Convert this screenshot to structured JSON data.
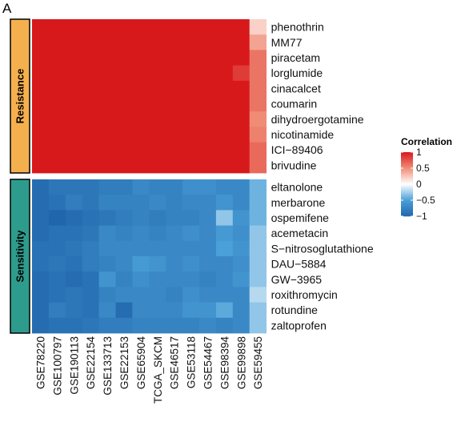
{
  "panel_label": "A",
  "chart_data": {
    "type": "heatmap",
    "title": "",
    "xlabel": "",
    "ylabel": "",
    "columns": [
      "GSE78220",
      "GSE100797",
      "GSE190113",
      "GSE22154",
      "GSE133713",
      "GSE22153",
      "GSE65904",
      "TCGA_SKCM",
      "GSE46517",
      "GSE53118",
      "GSE54467",
      "GSE98394",
      "GSE99898",
      "GSE59455"
    ],
    "groups": [
      {
        "name": "Resistance",
        "color": "#F5B04E",
        "start": 0,
        "end": 9
      },
      {
        "name": "Sensitivity",
        "color": "#2E9C8C",
        "start": 10,
        "end": 19
      }
    ],
    "rows": [
      "phenothrin",
      "MM77",
      "piracetam",
      "lorglumide",
      "cinacalcet",
      "coumarin",
      "dihydroergotamine",
      "nicotinamide",
      "ICI−89406",
      "brivudine",
      "eltanolone",
      "merbarone",
      "ospemifene",
      "acemetacin",
      "S−nitrosoglutathione",
      "DAU−5884",
      "GW−3965",
      "roxithromycin",
      "rotundine",
      "zaltoprofen"
    ],
    "values": [
      [
        1,
        1,
        1,
        1,
        1,
        1,
        1,
        1,
        1,
        1,
        1,
        1,
        1,
        0.2
      ],
      [
        1,
        1,
        1,
        1,
        1,
        1,
        1,
        1,
        1,
        1,
        1,
        1,
        1,
        0.4
      ],
      [
        1,
        1,
        1,
        1,
        1,
        1,
        1,
        1,
        1,
        1,
        1,
        1,
        1,
        0.6
      ],
      [
        1,
        1,
        1,
        1,
        1,
        1,
        1,
        1,
        1,
        1,
        1,
        1,
        0.85,
        0.6
      ],
      [
        1,
        1,
        1,
        1,
        1,
        1,
        1,
        1,
        1,
        1,
        1,
        1,
        1,
        0.6
      ],
      [
        1,
        1,
        1,
        1,
        1,
        1,
        1,
        1,
        1,
        1,
        1,
        1,
        1,
        0.6
      ],
      [
        1,
        1,
        1,
        1,
        1,
        1,
        1,
        1,
        1,
        1,
        1,
        1,
        1,
        0.5
      ],
      [
        1,
        1,
        1,
        1,
        1,
        1,
        1,
        1,
        1,
        1,
        1,
        1,
        1,
        0.55
      ],
      [
        1,
        1,
        1,
        1,
        1,
        1,
        1,
        1,
        1,
        1,
        1,
        1,
        1,
        0.65
      ],
      [
        1,
        1,
        1,
        1,
        1,
        1,
        1,
        1,
        1,
        1,
        1,
        1,
        1,
        0.65
      ],
      [
        -0.95,
        -0.85,
        -0.85,
        -0.85,
        -0.8,
        -0.8,
        -0.7,
        -0.75,
        -0.75,
        -0.65,
        -0.65,
        -0.7,
        -0.7,
        -0.4
      ],
      [
        -0.95,
        -0.9,
        -0.8,
        -0.85,
        -0.75,
        -0.75,
        -0.75,
        -0.7,
        -0.75,
        -0.7,
        -0.7,
        -0.6,
        -0.7,
        -0.4
      ],
      [
        -0.95,
        -1,
        -0.95,
        -0.9,
        -0.85,
        -0.8,
        -0.75,
        -0.8,
        -0.75,
        -0.75,
        -0.7,
        -0.3,
        -0.6,
        -0.4
      ],
      [
        -0.95,
        -0.9,
        -0.9,
        -0.85,
        -0.7,
        -0.75,
        -0.7,
        -0.75,
        -0.7,
        -0.65,
        -0.7,
        -0.55,
        -0.65,
        -0.3
      ],
      [
        -0.9,
        -0.9,
        -0.85,
        -0.8,
        -0.7,
        -0.7,
        -0.7,
        -0.7,
        -0.7,
        -0.7,
        -0.7,
        -0.5,
        -0.6,
        -0.3
      ],
      [
        -0.9,
        -0.85,
        -0.9,
        -0.8,
        -0.75,
        -0.7,
        -0.55,
        -0.6,
        -0.7,
        -0.65,
        -0.7,
        -0.7,
        -0.65,
        -0.3
      ],
      [
        -0.95,
        -0.9,
        -0.95,
        -0.9,
        -0.6,
        -0.75,
        -0.65,
        -0.7,
        -0.7,
        -0.7,
        -0.75,
        -0.7,
        -0.6,
        -0.3
      ],
      [
        -0.95,
        -0.9,
        -0.85,
        -0.9,
        -0.75,
        -0.7,
        -0.7,
        -0.7,
        -0.75,
        -0.65,
        -0.7,
        -0.7,
        -0.7,
        -0.2
      ],
      [
        -0.95,
        -0.8,
        -0.85,
        -0.9,
        -0.7,
        -0.95,
        -0.7,
        -0.7,
        -0.7,
        -0.6,
        -0.6,
        -0.45,
        -0.7,
        -0.3
      ],
      [
        -0.95,
        -0.9,
        -0.9,
        -0.85,
        -0.8,
        -0.8,
        -0.75,
        -0.75,
        -0.75,
        -0.75,
        -0.7,
        -0.75,
        -0.7,
        -0.3
      ]
    ],
    "colorscale": {
      "low": "#2166AC",
      "mid_low": "#4AA0D8",
      "mid": "#FFFFFF",
      "mid_high": "#F08C76",
      "high": "#D7191C",
      "range": [
        -1,
        1
      ]
    },
    "legend": {
      "title": "Correlation",
      "ticks": [
        "1",
        "0.5",
        "0",
        "−0.5",
        "−1"
      ],
      "tick_values": [
        1,
        0.5,
        0,
        -0.5,
        -1
      ],
      "placement": "right"
    }
  }
}
